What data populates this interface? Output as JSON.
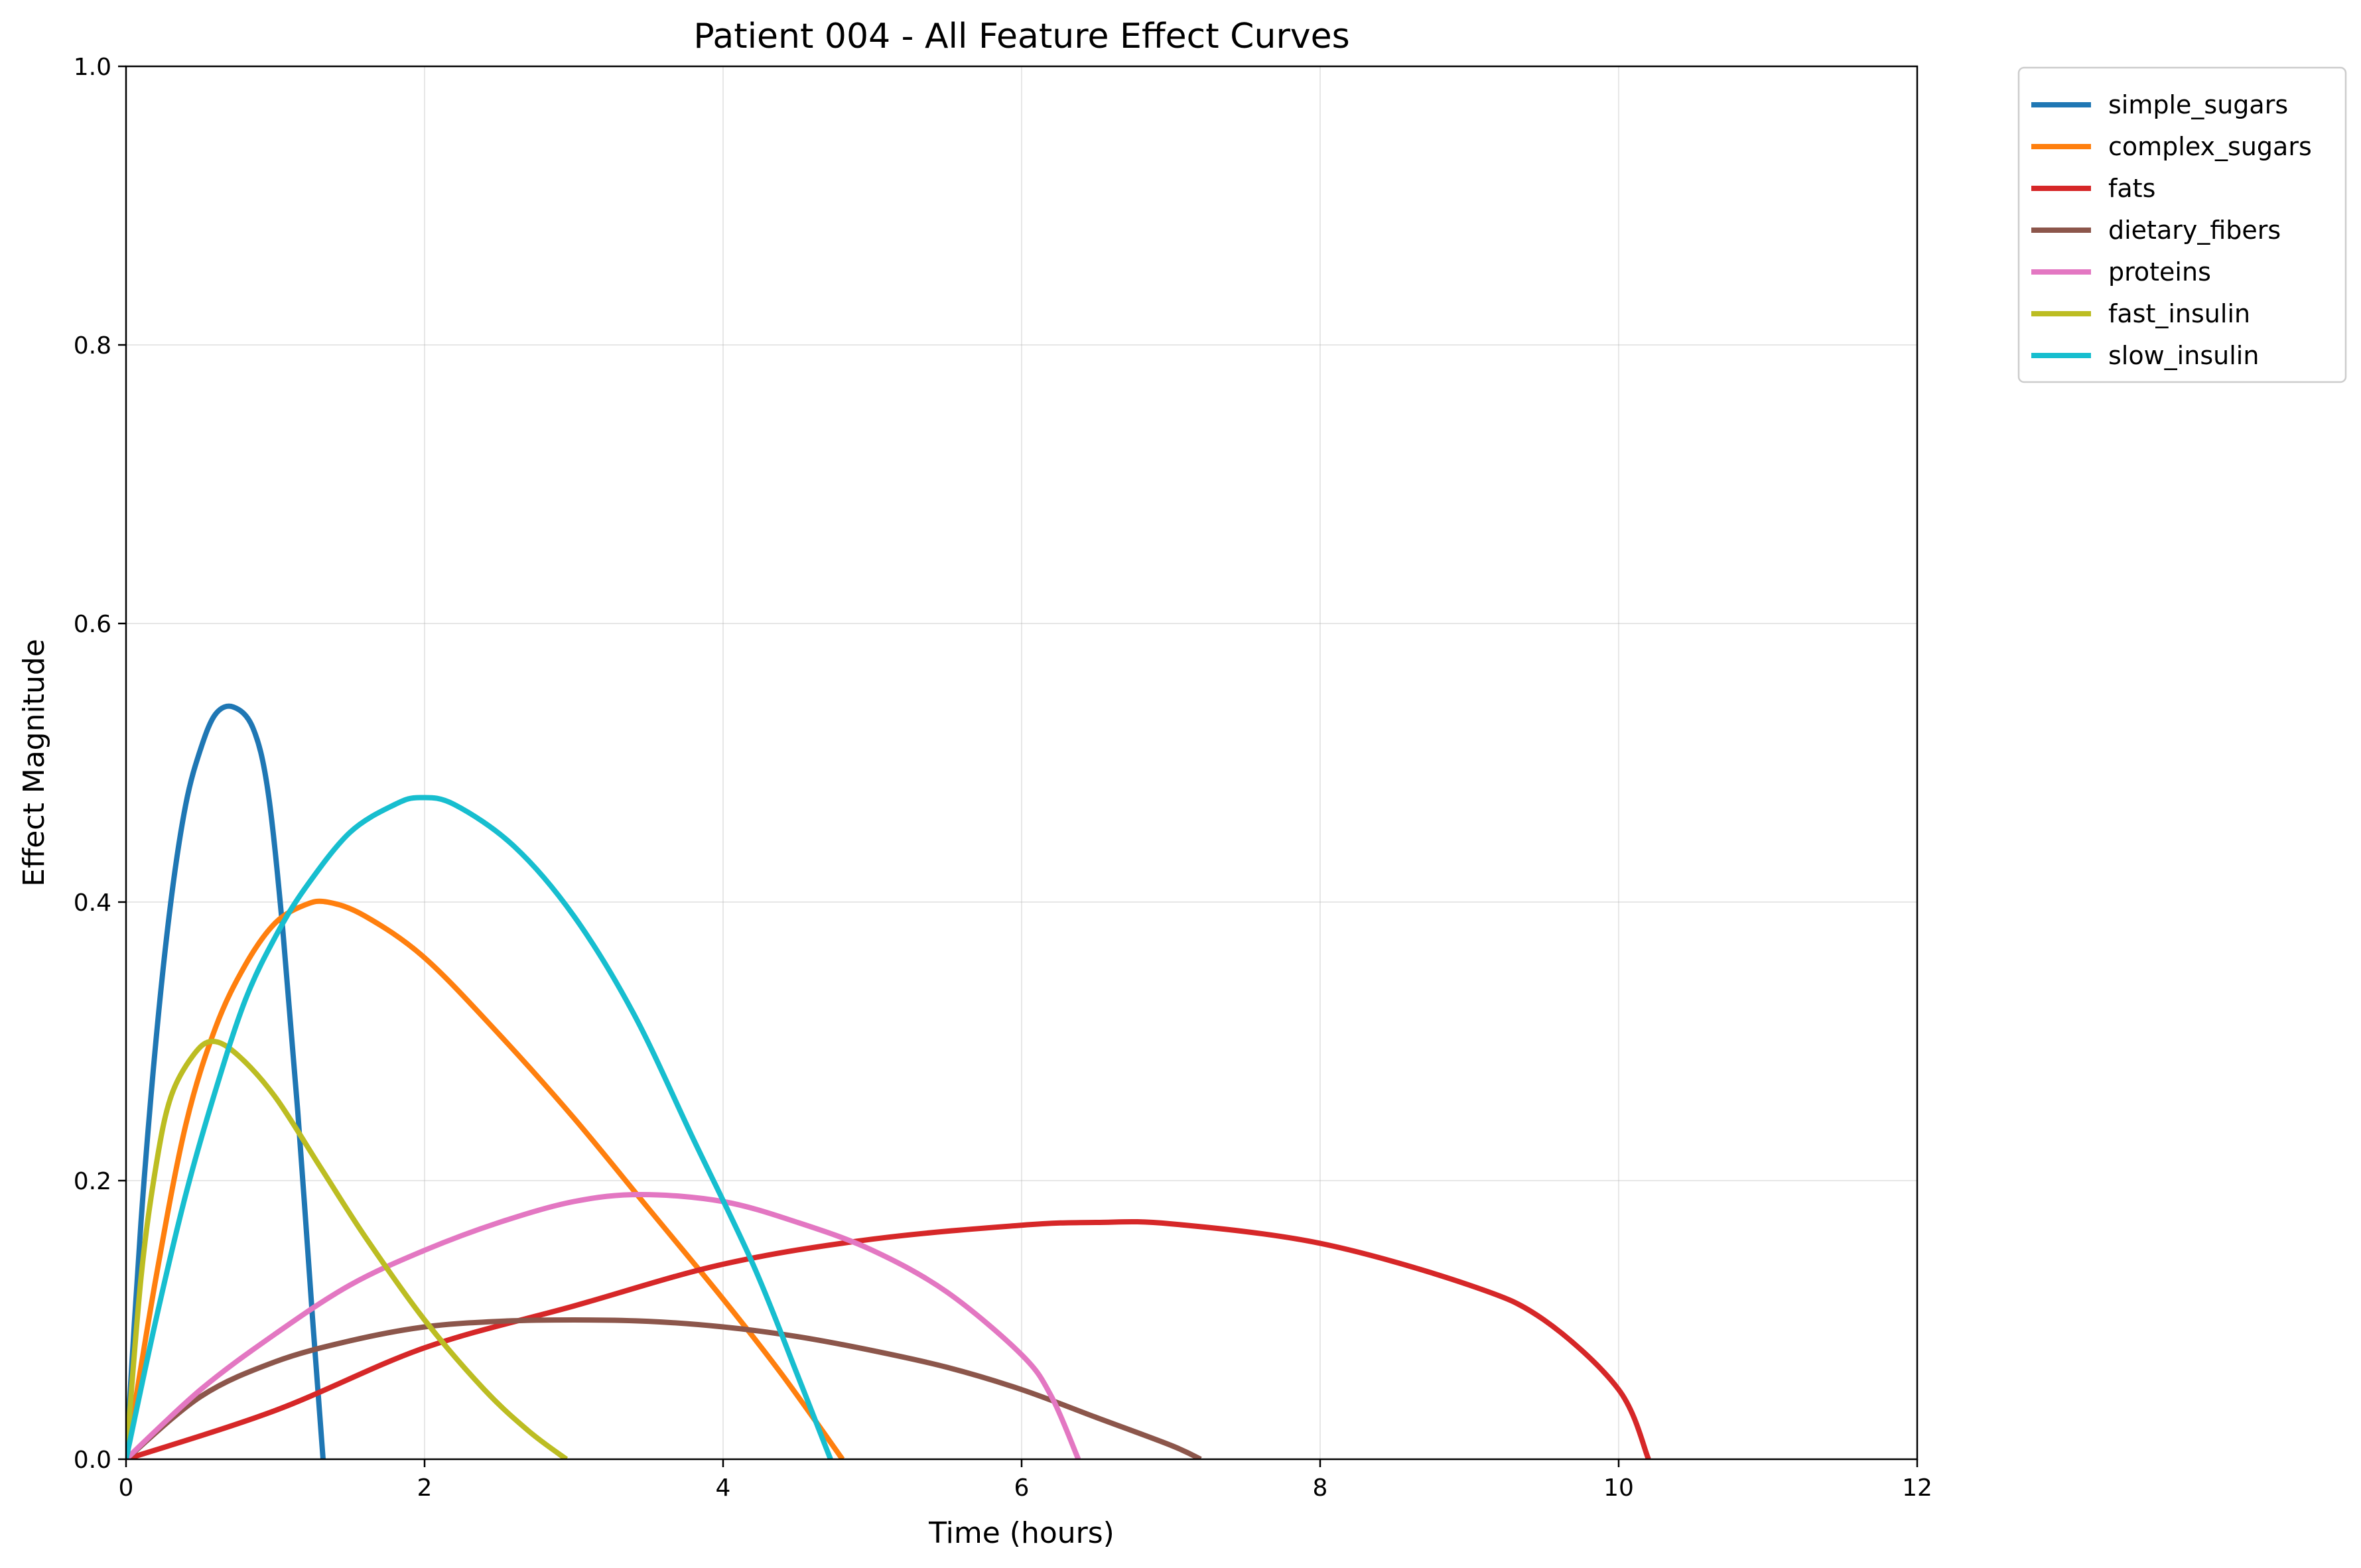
{
  "chart_data": {
    "type": "line",
    "title": "Patient 004 - All Feature Effect Curves",
    "xlabel": "Time (hours)",
    "ylabel": "Effect Magnitude",
    "xlim": [
      0,
      12
    ],
    "ylim": [
      0,
      1.0
    ],
    "xticks": [
      "0",
      "2",
      "4",
      "6",
      "8",
      "10",
      "12"
    ],
    "yticks": [
      "0.0",
      "0.2",
      "0.4",
      "0.6",
      "0.8",
      "1.0"
    ],
    "grid": true,
    "legend_position": "outside-top-right",
    "series": [
      {
        "name": "simple_sugars",
        "color": "#1f77b4",
        "points": [
          [
            0,
            0
          ],
          [
            0.1,
            0.17
          ],
          [
            0.2,
            0.3
          ],
          [
            0.3,
            0.4
          ],
          [
            0.4,
            0.47
          ],
          [
            0.5,
            0.51
          ],
          [
            0.6,
            0.535
          ],
          [
            0.72,
            0.54
          ],
          [
            0.85,
            0.525
          ],
          [
            0.95,
            0.48
          ],
          [
            1.05,
            0.38
          ],
          [
            1.15,
            0.25
          ],
          [
            1.25,
            0.1
          ],
          [
            1.32,
            0
          ]
        ]
      },
      {
        "name": "complex_sugars",
        "color": "#ff7f0e",
        "points": [
          [
            0,
            0
          ],
          [
            0.2,
            0.13
          ],
          [
            0.4,
            0.24
          ],
          [
            0.6,
            0.31
          ],
          [
            0.8,
            0.355
          ],
          [
            1.0,
            0.385
          ],
          [
            1.2,
            0.398
          ],
          [
            1.35,
            0.4
          ],
          [
            1.6,
            0.39
          ],
          [
            2.0,
            0.36
          ],
          [
            2.5,
            0.305
          ],
          [
            3.0,
            0.245
          ],
          [
            3.5,
            0.18
          ],
          [
            4.0,
            0.115
          ],
          [
            4.4,
            0.06
          ],
          [
            4.8,
            0
          ]
        ]
      },
      {
        "name": "fats",
        "color": "#d62728",
        "points": [
          [
            0,
            0
          ],
          [
            1,
            0.035
          ],
          [
            2,
            0.08
          ],
          [
            3,
            0.11
          ],
          [
            4,
            0.14
          ],
          [
            5,
            0.158
          ],
          [
            6,
            0.168
          ],
          [
            6.5,
            0.17
          ],
          [
            7,
            0.169
          ],
          [
            8,
            0.155
          ],
          [
            9,
            0.125
          ],
          [
            9.5,
            0.1
          ],
          [
            10,
            0.05
          ],
          [
            10.2,
            0
          ]
        ]
      },
      {
        "name": "dietary_fibers",
        "color": "#8c564b",
        "points": [
          [
            0,
            0
          ],
          [
            0.5,
            0.045
          ],
          [
            1,
            0.07
          ],
          [
            1.5,
            0.085
          ],
          [
            2,
            0.095
          ],
          [
            2.5,
            0.099
          ],
          [
            3,
            0.1
          ],
          [
            3.5,
            0.099
          ],
          [
            4,
            0.095
          ],
          [
            4.5,
            0.088
          ],
          [
            5,
            0.078
          ],
          [
            5.5,
            0.066
          ],
          [
            6,
            0.05
          ],
          [
            6.5,
            0.03
          ],
          [
            7,
            0.01
          ],
          [
            7.2,
            0
          ]
        ]
      },
      {
        "name": "proteins",
        "color": "#e377c2",
        "points": [
          [
            0,
            0
          ],
          [
            0.5,
            0.05
          ],
          [
            1,
            0.09
          ],
          [
            1.5,
            0.125
          ],
          [
            2,
            0.15
          ],
          [
            2.5,
            0.17
          ],
          [
            3,
            0.185
          ],
          [
            3.45,
            0.19
          ],
          [
            4,
            0.185
          ],
          [
            4.5,
            0.17
          ],
          [
            5,
            0.15
          ],
          [
            5.5,
            0.12
          ],
          [
            6,
            0.075
          ],
          [
            6.2,
            0.045
          ],
          [
            6.38,
            0
          ]
        ]
      },
      {
        "name": "fast_insulin",
        "color": "#bcbd22",
        "points": [
          [
            0,
            0
          ],
          [
            0.1,
            0.13
          ],
          [
            0.2,
            0.21
          ],
          [
            0.3,
            0.26
          ],
          [
            0.45,
            0.29
          ],
          [
            0.58,
            0.3
          ],
          [
            0.75,
            0.29
          ],
          [
            1.0,
            0.26
          ],
          [
            1.3,
            0.21
          ],
          [
            1.6,
            0.16
          ],
          [
            2.0,
            0.1
          ],
          [
            2.4,
            0.05
          ],
          [
            2.7,
            0.02
          ],
          [
            2.95,
            0
          ]
        ]
      },
      {
        "name": "slow_insulin",
        "color": "#17becf",
        "points": [
          [
            0,
            0
          ],
          [
            0.2,
            0.1
          ],
          [
            0.4,
            0.19
          ],
          [
            0.6,
            0.265
          ],
          [
            0.8,
            0.33
          ],
          [
            1.0,
            0.375
          ],
          [
            1.2,
            0.41
          ],
          [
            1.5,
            0.45
          ],
          [
            1.8,
            0.47
          ],
          [
            1.97,
            0.475
          ],
          [
            2.2,
            0.47
          ],
          [
            2.6,
            0.44
          ],
          [
            3.0,
            0.39
          ],
          [
            3.4,
            0.32
          ],
          [
            3.8,
            0.23
          ],
          [
            4.2,
            0.14
          ],
          [
            4.5,
            0.06
          ],
          [
            4.72,
            0
          ]
        ]
      }
    ]
  }
}
